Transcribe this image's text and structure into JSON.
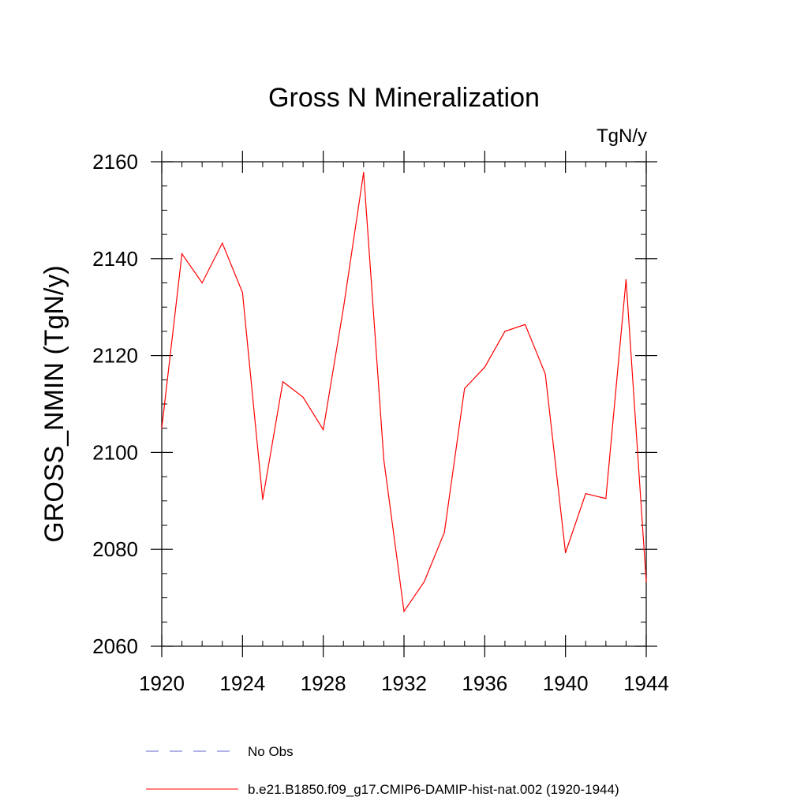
{
  "chart_data": {
    "type": "line",
    "title": "Gross N Mineralization",
    "units_label": "TgN/y",
    "ylabel": "GROSS_NMIN  (TgN/y)",
    "xlabel": "",
    "xlim": [
      1920,
      1944
    ],
    "ylim": [
      2060,
      2160
    ],
    "x_ticks": [
      1920,
      1924,
      1928,
      1932,
      1936,
      1940,
      1944
    ],
    "y_ticks": [
      2060,
      2080,
      2100,
      2120,
      2140,
      2160
    ],
    "x_minor_step": 1,
    "y_minor_step": 5,
    "grid": false,
    "legend_position": "bottom",
    "series": [
      {
        "name": "No Obs",
        "color": "#6666cc",
        "dash": "dashed",
        "x": [],
        "y": []
      },
      {
        "name": "b.e21.B1850.f09_g17.CMIP6-DAMIP-hist-nat.002 (1920-1944)",
        "color": "#ff0000",
        "dash": "solid",
        "x": [
          1920,
          1921,
          1922,
          1923,
          1924,
          1925,
          1926,
          1927,
          1928,
          1929,
          1930,
          1931,
          1932,
          1933,
          1934,
          1935,
          1936,
          1937,
          1938,
          1939,
          1940,
          1941,
          1942,
          1943,
          1944
        ],
        "y": [
          2105,
          2141,
          2135,
          2143.2,
          2133,
          2090.3,
          2114.6,
          2111.4,
          2104.7,
          2129.8,
          2157.8,
          2098.5,
          2067.2,
          2073.3,
          2083.5,
          2113.2,
          2117.6,
          2125,
          2126.4,
          2116.2,
          2079.3,
          2091.5,
          2090.5,
          2135.7,
          2073.3
        ]
      }
    ]
  }
}
